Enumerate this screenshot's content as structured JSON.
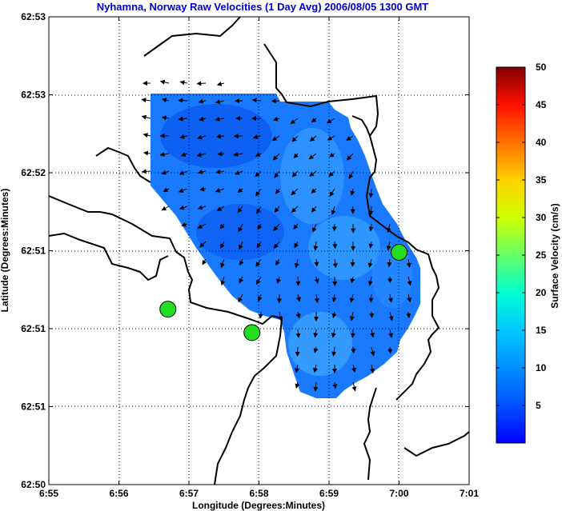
{
  "chart_data": {
    "type": "heatmap",
    "title": "Nyhamna, Norway Raw Velocities (1 Day Avg) 2006/08/05 1300 GMT",
    "xlabel": "Longitude (Degrees:Minutes)",
    "ylabel": "Latitude (Degrees:Minutes)",
    "x_tick_labels": [
      "6:55",
      "6:56",
      "6:57",
      "6:58",
      "6:59",
      "7:00",
      "7:01"
    ],
    "y_tick_labels": [
      "62:53",
      "62:53",
      "62:52",
      "62:51",
      "62:51",
      "62:51",
      "62:50"
    ],
    "grid": true,
    "colorbar": {
      "label": "Surface Velocity (cm/s)",
      "ticks": [
        5,
        10,
        15,
        20,
        25,
        30,
        35,
        40,
        45,
        50
      ],
      "range": [
        0,
        50
      ],
      "colormap": "jet"
    },
    "sites": [
      {
        "lon_min": 56.7,
        "lat_idx": 3.75
      },
      {
        "lon_min": 57.9,
        "lat_idx": 4.05
      },
      {
        "lon_min": 60.0,
        "lat_idx": 3.02
      }
    ],
    "speed_range_cm_s": [
      2,
      8
    ],
    "site_color": "#22dd22",
    "coast_color": "#000000",
    "title_color": "#0000cc"
  }
}
